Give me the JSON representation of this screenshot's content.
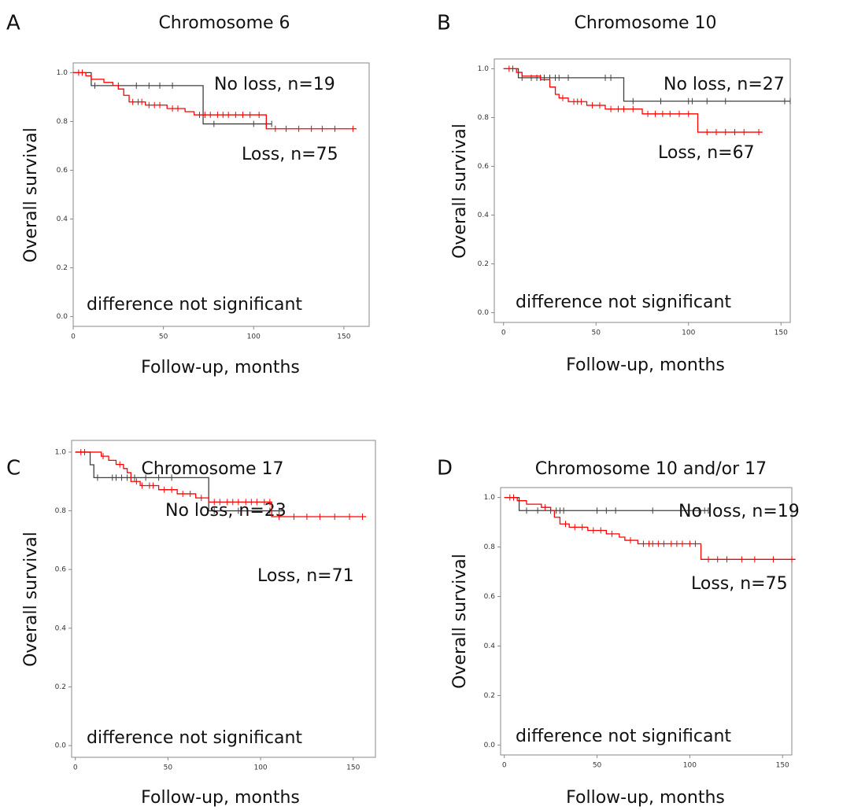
{
  "chart_data": [
    {
      "type": "line",
      "panel": "A",
      "title": "Chromosome 6",
      "xlabel": "Follow-up, months",
      "ylabel": "Overall survival",
      "annotation": "difference not significant",
      "xlim": [
        0,
        164
      ],
      "ylim": [
        -0.04,
        1.04
      ],
      "xticks": [
        0,
        50,
        100,
        150
      ],
      "yticks": [
        {
          "value": 0,
          "label": "0.0"
        },
        0.2,
        0.4,
        0.6,
        0.8,
        {
          "value": 1,
          "label": "1.0"
        }
      ],
      "series": [
        {
          "name": "No loss, n=19",
          "color": "#404040",
          "x": [
            0,
            10,
            10,
            72,
            72,
            110
          ],
          "values": [
            1,
            1,
            0.947,
            0.947,
            0.79,
            0.79
          ],
          "censor_x": [
            12,
            25,
            35,
            42,
            48,
            55,
            78,
            100,
            107,
            110
          ]
        },
        {
          "name": "Loss, n=75",
          "color": "#ff0000",
          "x": [
            0,
            7,
            7,
            10,
            10,
            17,
            17,
            22,
            22,
            25,
            25,
            28,
            28,
            31,
            31,
            40,
            40,
            52,
            52,
            62,
            62,
            67,
            67,
            107,
            107,
            157
          ],
          "values": [
            1,
            1,
            0.987,
            0.987,
            0.973,
            0.973,
            0.96,
            0.96,
            0.947,
            0.947,
            0.933,
            0.933,
            0.907,
            0.907,
            0.88,
            0.88,
            0.867,
            0.867,
            0.853,
            0.853,
            0.84,
            0.84,
            0.827,
            0.827,
            0.77,
            0.77
          ],
          "censor_x": [
            3,
            5,
            33,
            36,
            38,
            42,
            45,
            48,
            55,
            58,
            70,
            73,
            76,
            80,
            83,
            86,
            90,
            94,
            98,
            103,
            112,
            118,
            125,
            132,
            138,
            145,
            155
          ]
        }
      ]
    },
    {
      "type": "line",
      "panel": "B",
      "title": "Chromosome 10",
      "xlabel": "Follow-up, months",
      "ylabel": "Overall survival",
      "annotation": "difference not significant",
      "xlim": [
        -5,
        155
      ],
      "ylim": [
        -0.04,
        1.04
      ],
      "xticks": [
        0,
        50,
        100,
        150
      ],
      "yticks": [
        {
          "value": 0,
          "label": "0.0"
        },
        0.2,
        0.4,
        0.6,
        0.8,
        {
          "value": 1,
          "label": "1.0"
        }
      ],
      "series": [
        {
          "name": "No loss, n=27",
          "color": "#404040",
          "x": [
            0,
            8,
            8,
            65,
            65,
            155
          ],
          "values": [
            1,
            1,
            0.963,
            0.963,
            0.867,
            0.867
          ],
          "censor_x": [
            10,
            15,
            18,
            20,
            22,
            25,
            28,
            30,
            35,
            55,
            58,
            70,
            85,
            100,
            102,
            110,
            120,
            152,
            155
          ]
        },
        {
          "name": "Loss, n=67",
          "color": "#ff0000",
          "x": [
            0,
            7,
            7,
            10,
            10,
            20,
            20,
            25,
            25,
            28,
            28,
            30,
            30,
            35,
            35,
            45,
            45,
            55,
            55,
            75,
            75,
            105,
            105,
            140
          ],
          "values": [
            1,
            1,
            0.985,
            0.985,
            0.97,
            0.97,
            0.955,
            0.955,
            0.925,
            0.925,
            0.895,
            0.895,
            0.88,
            0.88,
            0.865,
            0.865,
            0.85,
            0.85,
            0.835,
            0.835,
            0.815,
            0.815,
            0.74,
            0.74
          ],
          "censor_x": [
            3,
            5,
            32,
            38,
            40,
            42,
            48,
            52,
            58,
            62,
            65,
            70,
            78,
            82,
            86,
            90,
            95,
            100,
            110,
            115,
            120,
            125,
            130,
            138
          ]
        }
      ]
    },
    {
      "type": "line",
      "panel": "C",
      "title": "Chromosome 17",
      "xlabel": "Follow-up, months",
      "ylabel": "Overall survival",
      "annotation": "difference not significant",
      "xlim": [
        -2,
        162
      ],
      "ylim": [
        -0.04,
        1.04
      ],
      "xticks": [
        0,
        50,
        100,
        150
      ],
      "yticks": [
        {
          "value": 0,
          "label": "0.0"
        },
        0.2,
        0.4,
        0.6,
        0.8,
        {
          "value": 1,
          "label": "1.0"
        }
      ],
      "series": [
        {
          "name": "No loss, n=23",
          "color": "#404040",
          "x": [
            0,
            8,
            8,
            10,
            10,
            72,
            72,
            112
          ],
          "values": [
            1,
            1,
            0.957,
            0.957,
            0.913,
            0.913,
            0.8,
            0.8
          ],
          "censor_x": [
            12,
            20,
            22,
            25,
            28,
            32,
            38,
            45,
            52,
            75,
            88,
            105,
            110
          ]
        },
        {
          "name": "Loss, n=71",
          "color": "#ff0000",
          "x": [
            0,
            14,
            14,
            18,
            18,
            22,
            22,
            26,
            26,
            28,
            28,
            30,
            30,
            35,
            35,
            45,
            45,
            55,
            55,
            65,
            65,
            72,
            72,
            106,
            106,
            157
          ],
          "values": [
            1,
            1,
            0.986,
            0.986,
            0.972,
            0.972,
            0.958,
            0.958,
            0.944,
            0.944,
            0.93,
            0.93,
            0.9,
            0.9,
            0.886,
            0.886,
            0.872,
            0.872,
            0.858,
            0.858,
            0.844,
            0.844,
            0.83,
            0.83,
            0.78,
            0.78
          ],
          "censor_x": [
            3,
            5,
            15,
            24,
            33,
            36,
            40,
            42,
            48,
            52,
            58,
            62,
            68,
            75,
            78,
            82,
            85,
            88,
            92,
            95,
            98,
            102,
            105,
            110,
            118,
            125,
            132,
            140,
            148,
            155
          ]
        }
      ]
    },
    {
      "type": "line",
      "panel": "D",
      "title": "Chromosome 10 and/or 17",
      "xlabel": "Follow-up, months",
      "ylabel": "Overall survival",
      "annotation": "difference not significant",
      "xlim": [
        -2,
        155
      ],
      "ylim": [
        -0.04,
        1.04
      ],
      "xticks": [
        0,
        50,
        100,
        150
      ],
      "yticks": [
        {
          "value": 0,
          "label": "0.0"
        },
        0.2,
        0.4,
        0.6,
        0.8,
        {
          "value": 1,
          "label": "1.0"
        }
      ],
      "series": [
        {
          "name": "No loss, n=19",
          "color": "#404040",
          "x": [
            0,
            8,
            8,
            110
          ],
          "values": [
            1,
            1,
            0.947,
            0.947
          ],
          "censor_x": [
            12,
            18,
            25,
            28,
            30,
            32,
            50,
            55,
            60,
            80,
            105,
            108,
            110
          ]
        },
        {
          "name": "Loss, n=75",
          "color": "#ff0000",
          "x": [
            0,
            7,
            7,
            12,
            12,
            20,
            20,
            25,
            25,
            27,
            27,
            30,
            30,
            35,
            35,
            45,
            45,
            55,
            55,
            62,
            62,
            65,
            65,
            72,
            72,
            106,
            106,
            157
          ],
          "values": [
            1,
            1,
            0.987,
            0.987,
            0.973,
            0.973,
            0.96,
            0.96,
            0.947,
            0.947,
            0.92,
            0.92,
            0.893,
            0.893,
            0.88,
            0.88,
            0.867,
            0.867,
            0.853,
            0.853,
            0.84,
            0.84,
            0.827,
            0.827,
            0.813,
            0.813,
            0.75,
            0.75
          ],
          "censor_x": [
            3,
            5,
            22,
            33,
            38,
            42,
            48,
            52,
            58,
            68,
            75,
            78,
            80,
            83,
            86,
            90,
            93,
            96,
            100,
            103,
            110,
            115,
            120,
            128,
            135,
            145,
            155
          ]
        }
      ]
    }
  ]
}
